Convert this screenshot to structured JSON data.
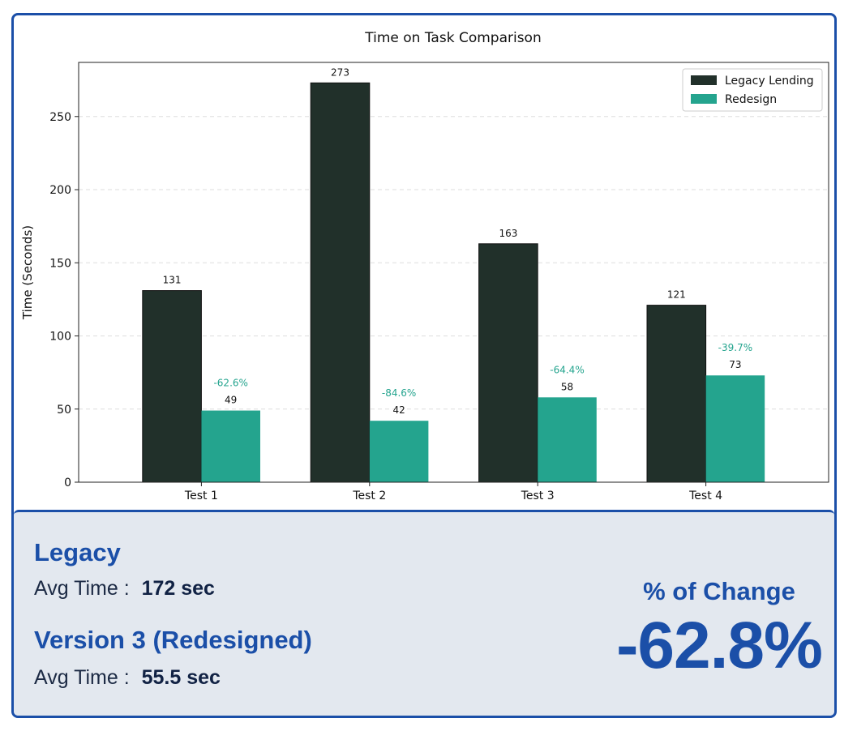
{
  "chart_data": {
    "type": "bar",
    "title": "Time on Task Comparison",
    "xlabel": "",
    "ylabel": "Time (Seconds)",
    "categories": [
      "Test 1",
      "Test 2",
      "Test 3",
      "Test 4"
    ],
    "series": [
      {
        "name": "Legacy Lending",
        "values": [
          131,
          273,
          163,
          121
        ],
        "color": "#21302a"
      },
      {
        "name": "Redesign",
        "values": [
          49,
          42,
          58,
          73
        ],
        "color": "#24a48e"
      }
    ],
    "pct_change_labels": [
      "-62.6%",
      "-84.6%",
      "-64.4%",
      "-39.7%"
    ],
    "pct_label_color": "#24a48e",
    "ylim": [
      0,
      287
    ],
    "yticks": [
      0,
      50,
      100,
      150,
      200,
      250
    ],
    "grid": true,
    "legend": "top-right"
  },
  "summary": {
    "legacy_title": "Legacy",
    "legacy_avg_label": "Avg Time :",
    "legacy_avg_value": "172 sec",
    "redesign_title": "Version 3 (Redesigned)",
    "redesign_avg_label": "Avg Time :",
    "redesign_avg_value": "55.5 sec",
    "change_label": "% of Change",
    "change_value": "-62.8%"
  }
}
